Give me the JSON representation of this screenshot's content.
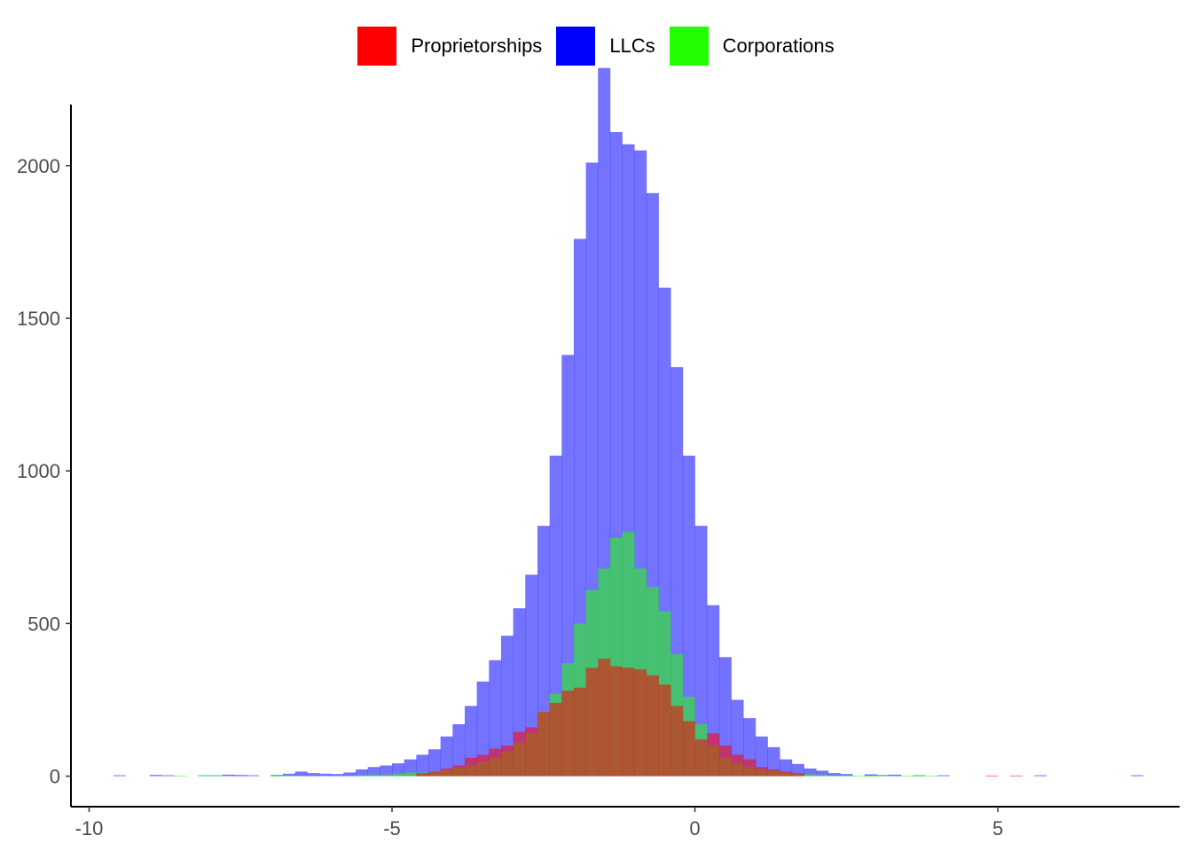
{
  "chart_data": {
    "type": "bar",
    "title": "",
    "xlabel": "",
    "ylabel": "",
    "xlim": [
      -10.3,
      8.0
    ],
    "ylim": [
      -100,
      2200
    ],
    "bin_width": 0.2,
    "x_ticks": [
      "-10",
      "-5",
      "0",
      "5"
    ],
    "x_tick_values": [
      -10,
      -5,
      0,
      5
    ],
    "y_ticks": [
      "0",
      "500",
      "1000",
      "1500",
      "2000"
    ],
    "y_tick_values": [
      0,
      500,
      1000,
      1500,
      2000
    ],
    "legend_position": "top",
    "colors": {
      "Proprietorships": "#ff0000",
      "LLCs": "#0000ff",
      "Corporations": "#22ff00"
    },
    "series": [
      {
        "name": "LLCs",
        "x": [
          -9.5,
          -8.9,
          -8.7,
          -8.1,
          -7.9,
          -7.7,
          -7.5,
          -7.3,
          -6.9,
          -6.7,
          -6.5,
          -6.3,
          -6.1,
          -5.9,
          -5.7,
          -5.5,
          -5.3,
          -5.1,
          -4.9,
          -4.7,
          -4.5,
          -4.3,
          -4.1,
          -3.9,
          -3.7,
          -3.5,
          -3.3,
          -3.1,
          -2.9,
          -2.7,
          -2.5,
          -2.3,
          -2.1,
          -1.9,
          -1.7,
          -1.5,
          -1.3,
          -1.1,
          -0.9,
          -0.7,
          -0.5,
          -0.3,
          -0.1,
          0.1,
          0.3,
          0.5,
          0.7,
          0.9,
          1.1,
          1.3,
          1.5,
          1.7,
          1.9,
          2.1,
          2.3,
          2.5,
          2.9,
          3.1,
          3.3,
          3.7,
          4.1,
          5.7,
          7.3
        ],
        "values": [
          3,
          4,
          3,
          3,
          3,
          5,
          4,
          3,
          4,
          8,
          15,
          10,
          8,
          7,
          12,
          22,
          30,
          35,
          42,
          55,
          70,
          88,
          130,
          170,
          230,
          310,
          380,
          460,
          550,
          660,
          820,
          1050,
          1380,
          1760,
          2010,
          2320,
          2110,
          2070,
          2050,
          1910,
          1600,
          1340,
          1050,
          820,
          560,
          390,
          250,
          190,
          130,
          95,
          55,
          40,
          25,
          18,
          10,
          7,
          6,
          4,
          5,
          3,
          3,
          3,
          3
        ]
      },
      {
        "name": "Corporations",
        "x": [
          -8.5,
          -8.1,
          -7.9,
          -6.9,
          -6.7,
          -5.5,
          -5.3,
          -5.1,
          -4.9,
          -4.7,
          -4.5,
          -4.3,
          -4.1,
          -3.9,
          -3.7,
          -3.5,
          -3.3,
          -3.1,
          -2.9,
          -2.7,
          -2.5,
          -2.3,
          -2.1,
          -1.9,
          -1.7,
          -1.5,
          -1.3,
          -1.1,
          -0.9,
          -0.7,
          -0.5,
          -0.3,
          -0.1,
          0.1,
          0.3,
          0.5,
          0.7,
          0.9,
          1.1,
          1.3,
          1.5,
          1.7,
          1.9,
          2.1,
          2.3,
          2.5,
          2.7,
          2.9,
          3.1,
          3.5,
          3.7,
          3.9
        ],
        "values": [
          2,
          3,
          3,
          2,
          3,
          4,
          5,
          5,
          8,
          12,
          12,
          15,
          22,
          28,
          35,
          48,
          60,
          80,
          110,
          140,
          210,
          270,
          370,
          500,
          610,
          680,
          780,
          800,
          680,
          620,
          540,
          400,
          260,
          170,
          100,
          60,
          42,
          30,
          22,
          18,
          12,
          8,
          6,
          5,
          3,
          3,
          2,
          2,
          3,
          2,
          2,
          2
        ]
      },
      {
        "name": "Proprietorships",
        "x": [
          -4.5,
          -4.3,
          -4.1,
          -3.9,
          -3.7,
          -3.5,
          -3.3,
          -3.1,
          -2.9,
          -2.7,
          -2.5,
          -2.3,
          -2.1,
          -1.9,
          -1.7,
          -1.5,
          -1.3,
          -1.1,
          -0.9,
          -0.7,
          -0.5,
          -0.3,
          -0.1,
          0.1,
          0.3,
          0.5,
          0.7,
          0.9,
          1.1,
          1.3,
          1.5,
          1.7,
          4.9,
          5.3
        ],
        "values": [
          10,
          15,
          25,
          35,
          60,
          70,
          90,
          100,
          145,
          160,
          210,
          240,
          280,
          290,
          355,
          385,
          360,
          355,
          350,
          330,
          300,
          230,
          180,
          120,
          140,
          100,
          70,
          55,
          30,
          22,
          15,
          10,
          2,
          2
        ]
      }
    ]
  },
  "legend": {
    "items": [
      {
        "label": "Proprietorships",
        "color": "#ff0000"
      },
      {
        "label": "LLCs",
        "color": "#0000ff"
      },
      {
        "label": "Corporations",
        "color": "#22ff00"
      }
    ]
  }
}
